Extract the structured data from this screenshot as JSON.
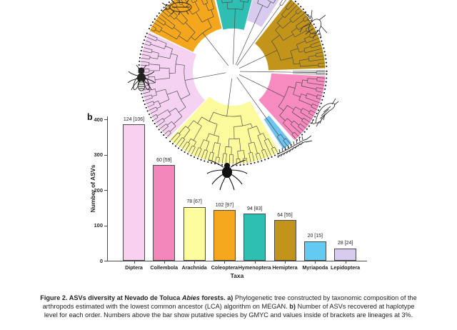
{
  "chart_data": [
    {
      "type": "circular_phylogenetic_tree",
      "description": "Circular phylogram of arthropod ASVs, clades highlighted by order; no text labels, taxa indicated by insect silhouettes",
      "branch_color": "#474747",
      "tip_dot_color": "#141414",
      "sectors": [
        {
          "name": "hymenoptera-clade",
          "color": "#2FBEB2",
          "start": -13,
          "end": 15,
          "inner_r": 60,
          "tips": 13
        },
        {
          "name": "lepidoptera-clade",
          "color": "#D8CBF0",
          "start": 15.5,
          "end": 33,
          "inner_r": 74,
          "tips": 8
        },
        {
          "name": "ungrouped-clade",
          "color": "none",
          "start": 34,
          "end": 37.5,
          "inner_r": 84,
          "tips": 2
        },
        {
          "name": "hemiptera-clade",
          "color": "#C2951A",
          "start": 38.5,
          "end": 88,
          "inner_r": 50,
          "tips": 22
        },
        {
          "name": "unassigned-clade",
          "color": "#CBCBCB",
          "start": 89,
          "end": 92.5,
          "inner_r": 84,
          "tips": 2
        },
        {
          "name": "collembola-clade",
          "color": "#F78ABE",
          "start": 93,
          "end": 138,
          "inner_r": 54,
          "tips": 20
        },
        {
          "name": "myriapoda-clade",
          "color": "#6FC4F0",
          "start": 140.5,
          "end": 147,
          "inner_r": 80,
          "tips": 3
        },
        {
          "name": "arachnida-clade",
          "color": "#FBFA9C",
          "start": 150,
          "end": 223,
          "inner_r": 48,
          "tips": 33
        },
        {
          "name": "diptera-clade",
          "color": "#F5D2F2",
          "start": 224,
          "end": 295,
          "inner_r": 56,
          "tips": 32
        },
        {
          "name": "coleoptera-clade",
          "color": "#F4A71D",
          "start": 296,
          "end": 345.5,
          "inner_r": 62,
          "tips": 22
        }
      ],
      "icons": [
        "beetle-icon",
        "aphid-icon",
        "springtail-icon",
        "centipede-icon",
        "spider-icon",
        "fly-icon"
      ]
    },
    {
      "type": "bar",
      "panel_label": "b",
      "title": "",
      "xlabel": "Taxa",
      "ylabel": "Number of ASVs",
      "ylim": [
        0,
        400
      ],
      "yticks": [
        0,
        100,
        200,
        300,
        400
      ],
      "grid": false,
      "legend": "none",
      "categories": [
        "Diptera",
        "Collembola",
        "Arachnida",
        "Coleoptera",
        "Hymenoptera",
        "Hemiptera",
        "Myriapoda",
        "Lepidoptera"
      ],
      "values": [
        385,
        270,
        152,
        143,
        133,
        115,
        55,
        35
      ],
      "bar_labels": [
        "124 [106]",
        "60 [59]",
        "78 [67]",
        "102 [97]",
        "94 [83]",
        "64 [55]",
        "20 [15]",
        "28 [24]"
      ],
      "bar_colors": [
        "#F8D0F0",
        "#F487BA",
        "#FDFC9E",
        "#F5A71E",
        "#2FBEB2",
        "#C2951A",
        "#63CBF2",
        "#D8CBF0"
      ]
    }
  ],
  "caption": {
    "segments": [
      {
        "text": "Figure 2. ASVs diversity at Nevado de Toluca ",
        "style": "bold"
      },
      {
        "text": "Abies",
        "style": "bold-italic"
      },
      {
        "text": " forests. ",
        "style": "bold"
      },
      {
        "text": "a)",
        "style": "bold"
      },
      {
        "text": " Phylogenetic tree constructed by taxonomic composition of the arthropods estimated with the lowest common ancestor (LCA) algorithm on MEGAN. ",
        "style": "normal"
      },
      {
        "text": "b)",
        "style": "bold"
      },
      {
        "text": " Number of ASVs recovered at haplotype level for each order. Numbers above the bar show putative species by GMYC and values inside of brackets are lineages at 3%.",
        "style": "normal"
      }
    ]
  }
}
